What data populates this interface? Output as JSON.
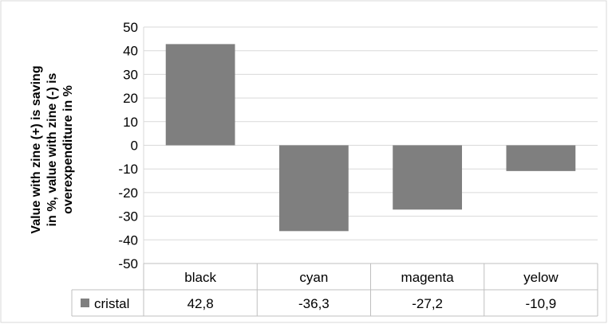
{
  "chart_data": {
    "type": "bar",
    "categories": [
      "black",
      "cyan",
      "magenta",
      "yelow"
    ],
    "series": [
      {
        "name": "cristal",
        "values": [
          42.8,
          -36.3,
          -27.2,
          -10.9
        ],
        "labels": [
          "42,8",
          "-36,3",
          "-27,2",
          "-10,9"
        ],
        "color": "#7f7f7f"
      }
    ],
    "ylabel_lines": [
      "Value with zine (+) is  saving",
      "in %, value with zine (-) is",
      "overexpenditure in %"
    ],
    "yticks": [
      50,
      40,
      30,
      20,
      10,
      0,
      -10,
      -20,
      -30,
      -40,
      -50
    ],
    "ylim": [
      -50,
      50
    ],
    "grid": true,
    "legend": "data-table"
  }
}
